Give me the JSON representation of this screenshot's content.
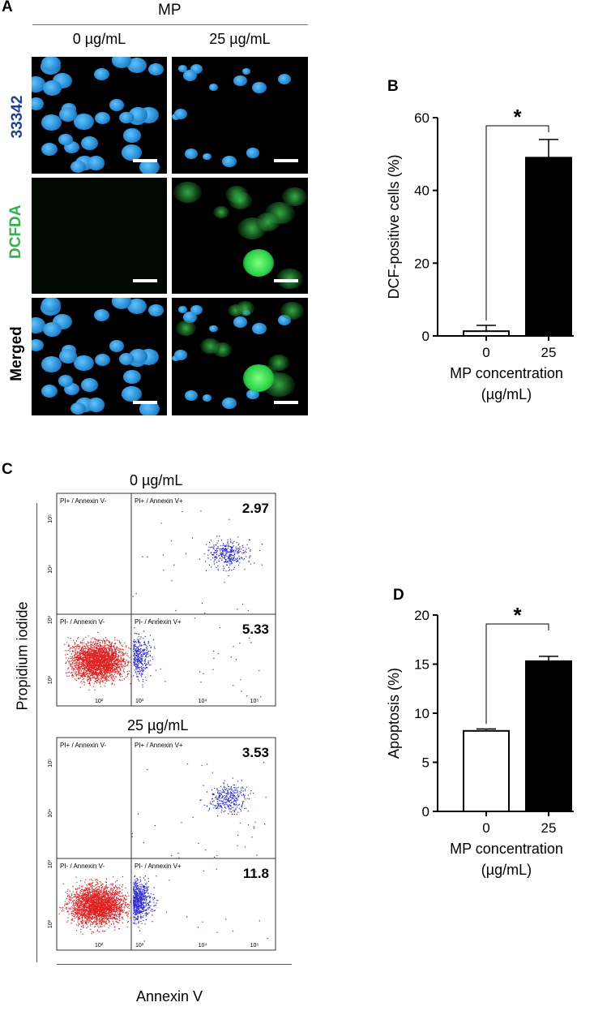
{
  "panels": {
    "a": "A",
    "b": "B",
    "c": "C",
    "d": "D"
  },
  "micrographs": {
    "group_label": "MP",
    "columns": [
      "0 µg/mL",
      "25 µg/mL"
    ],
    "rows": [
      {
        "label": "33342",
        "color": "#1f3f8f"
      },
      {
        "label": "DCFDA",
        "color": "#2fb34a"
      },
      {
        "label": "Merged",
        "color": "#000000"
      }
    ]
  },
  "flow": {
    "titles": [
      "0 µg/mL",
      "25 µg/mL"
    ],
    "quadrants": {
      "ul": "PI+ / Annexin V-",
      "ur": "PI+ / Annexin V+",
      "ll": "PI- / Annexin V-",
      "lr": "PI- / Annexin V+"
    },
    "plots": [
      {
        "upper_right_pct": "2.97",
        "lower_right_pct": "5.33"
      },
      {
        "upper_right_pct": "3.53",
        "lower_right_pct": "11.8"
      }
    ],
    "ylabel": "Propidium iodide",
    "xlabel": "Annexin V",
    "tick_labels": {
      "y5": "10⁵",
      "y4": "10⁴",
      "y3": "10³",
      "y2": "10²",
      "x2": "10²",
      "x3": "10³",
      "x4": "10⁴",
      "x5": "10⁵"
    }
  },
  "chart_data": [
    {
      "type": "bar",
      "categories": [
        "0",
        "25"
      ],
      "values": [
        1.3,
        49.0
      ],
      "errors": [
        1.6,
        5.0
      ],
      "ylim": [
        0,
        60
      ],
      "yticks": [
        "0",
        "20",
        "40",
        "60"
      ],
      "ylabel": "DCF-positive cells (%)",
      "xlabel": [
        "MP concentration",
        "(µg/mL)"
      ],
      "significance": "*",
      "bar_fills": [
        "#ffffff",
        "#000000"
      ]
    },
    {
      "type": "bar",
      "categories": [
        "0",
        "25"
      ],
      "values": [
        8.2,
        15.3
      ],
      "errors": [
        0.2,
        0.5
      ],
      "ylim": [
        0,
        20
      ],
      "yticks": [
        "0",
        "5",
        "10",
        "15",
        "20"
      ],
      "ylabel": "Apoptosis (%)",
      "xlabel": [
        "MP concentration",
        "(µg/mL)"
      ],
      "significance": "*",
      "bar_fills": [
        "#ffffff",
        "#000000"
      ]
    }
  ]
}
